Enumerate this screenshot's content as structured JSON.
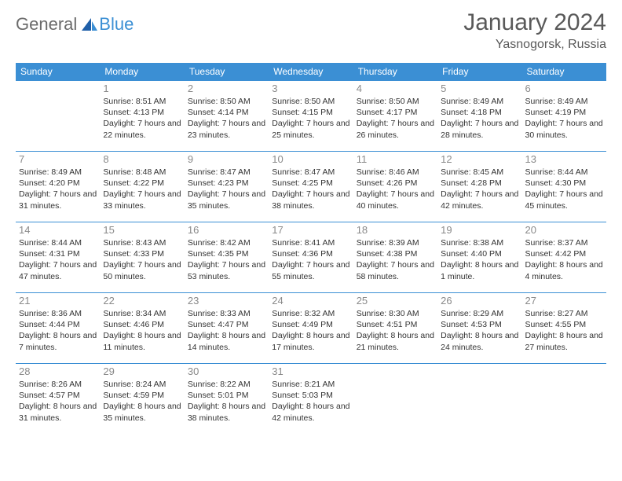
{
  "logo": {
    "word1": "General",
    "word2": "Blue"
  },
  "header": {
    "title": "January 2024",
    "location": "Yasnogorsk, Russia"
  },
  "colors": {
    "header_bg": "#3b8fd4",
    "header_text": "#ffffff",
    "border": "#3b8fd4",
    "daynum": "#8a8a8a",
    "text": "#333333",
    "logo_gray": "#6b6b6b",
    "logo_blue": "#3b8fd4",
    "title_gray": "#595959"
  },
  "weekdays": [
    "Sunday",
    "Monday",
    "Tuesday",
    "Wednesday",
    "Thursday",
    "Friday",
    "Saturday"
  ],
  "weeks": [
    [
      null,
      {
        "n": "1",
        "sr": "8:51 AM",
        "ss": "4:13 PM",
        "dl": "7 hours and 22 minutes."
      },
      {
        "n": "2",
        "sr": "8:50 AM",
        "ss": "4:14 PM",
        "dl": "7 hours and 23 minutes."
      },
      {
        "n": "3",
        "sr": "8:50 AM",
        "ss": "4:15 PM",
        "dl": "7 hours and 25 minutes."
      },
      {
        "n": "4",
        "sr": "8:50 AM",
        "ss": "4:17 PM",
        "dl": "7 hours and 26 minutes."
      },
      {
        "n": "5",
        "sr": "8:49 AM",
        "ss": "4:18 PM",
        "dl": "7 hours and 28 minutes."
      },
      {
        "n": "6",
        "sr": "8:49 AM",
        "ss": "4:19 PM",
        "dl": "7 hours and 30 minutes."
      }
    ],
    [
      {
        "n": "7",
        "sr": "8:49 AM",
        "ss": "4:20 PM",
        "dl": "7 hours and 31 minutes."
      },
      {
        "n": "8",
        "sr": "8:48 AM",
        "ss": "4:22 PM",
        "dl": "7 hours and 33 minutes."
      },
      {
        "n": "9",
        "sr": "8:47 AM",
        "ss": "4:23 PM",
        "dl": "7 hours and 35 minutes."
      },
      {
        "n": "10",
        "sr": "8:47 AM",
        "ss": "4:25 PM",
        "dl": "7 hours and 38 minutes."
      },
      {
        "n": "11",
        "sr": "8:46 AM",
        "ss": "4:26 PM",
        "dl": "7 hours and 40 minutes."
      },
      {
        "n": "12",
        "sr": "8:45 AM",
        "ss": "4:28 PM",
        "dl": "7 hours and 42 minutes."
      },
      {
        "n": "13",
        "sr": "8:44 AM",
        "ss": "4:30 PM",
        "dl": "7 hours and 45 minutes."
      }
    ],
    [
      {
        "n": "14",
        "sr": "8:44 AM",
        "ss": "4:31 PM",
        "dl": "7 hours and 47 minutes."
      },
      {
        "n": "15",
        "sr": "8:43 AM",
        "ss": "4:33 PM",
        "dl": "7 hours and 50 minutes."
      },
      {
        "n": "16",
        "sr": "8:42 AM",
        "ss": "4:35 PM",
        "dl": "7 hours and 53 minutes."
      },
      {
        "n": "17",
        "sr": "8:41 AM",
        "ss": "4:36 PM",
        "dl": "7 hours and 55 minutes."
      },
      {
        "n": "18",
        "sr": "8:39 AM",
        "ss": "4:38 PM",
        "dl": "7 hours and 58 minutes."
      },
      {
        "n": "19",
        "sr": "8:38 AM",
        "ss": "4:40 PM",
        "dl": "8 hours and 1 minute."
      },
      {
        "n": "20",
        "sr": "8:37 AM",
        "ss": "4:42 PM",
        "dl": "8 hours and 4 minutes."
      }
    ],
    [
      {
        "n": "21",
        "sr": "8:36 AM",
        "ss": "4:44 PM",
        "dl": "8 hours and 7 minutes."
      },
      {
        "n": "22",
        "sr": "8:34 AM",
        "ss": "4:46 PM",
        "dl": "8 hours and 11 minutes."
      },
      {
        "n": "23",
        "sr": "8:33 AM",
        "ss": "4:47 PM",
        "dl": "8 hours and 14 minutes."
      },
      {
        "n": "24",
        "sr": "8:32 AM",
        "ss": "4:49 PM",
        "dl": "8 hours and 17 minutes."
      },
      {
        "n": "25",
        "sr": "8:30 AM",
        "ss": "4:51 PM",
        "dl": "8 hours and 21 minutes."
      },
      {
        "n": "26",
        "sr": "8:29 AM",
        "ss": "4:53 PM",
        "dl": "8 hours and 24 minutes."
      },
      {
        "n": "27",
        "sr": "8:27 AM",
        "ss": "4:55 PM",
        "dl": "8 hours and 27 minutes."
      }
    ],
    [
      {
        "n": "28",
        "sr": "8:26 AM",
        "ss": "4:57 PM",
        "dl": "8 hours and 31 minutes."
      },
      {
        "n": "29",
        "sr": "8:24 AM",
        "ss": "4:59 PM",
        "dl": "8 hours and 35 minutes."
      },
      {
        "n": "30",
        "sr": "8:22 AM",
        "ss": "5:01 PM",
        "dl": "8 hours and 38 minutes."
      },
      {
        "n": "31",
        "sr": "8:21 AM",
        "ss": "5:03 PM",
        "dl": "8 hours and 42 minutes."
      },
      null,
      null,
      null
    ]
  ],
  "labels": {
    "sunrise": "Sunrise: ",
    "sunset": "Sunset: ",
    "daylight": "Daylight: "
  }
}
